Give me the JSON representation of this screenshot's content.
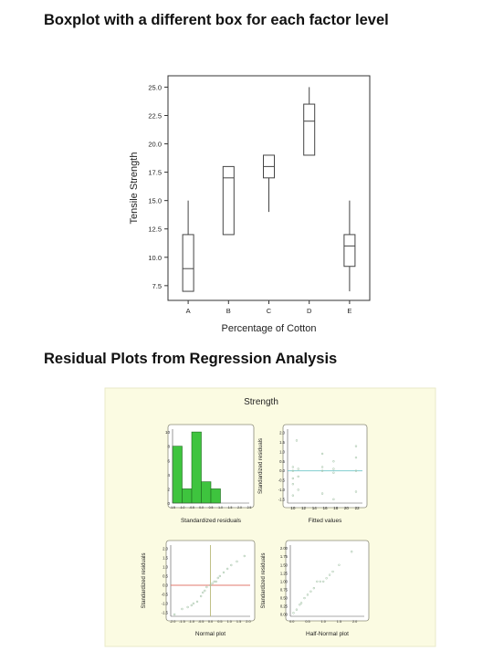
{
  "headings": {
    "boxplot": "Boxplot with a different box for each factor level",
    "residual": "Residual Plots from Regression Analysis"
  },
  "chart_data": [
    {
      "type": "boxplot",
      "xlabel": "Percentage of Cotton",
      "ylabel": "Tensile Strength",
      "categories": [
        "A",
        "B",
        "C",
        "D",
        "E"
      ],
      "yticks": [
        7.5,
        10.0,
        12.5,
        15.0,
        17.5,
        20.0,
        22.5,
        25.0
      ],
      "ylim": [
        6.2,
        26.0
      ],
      "boxes": [
        {
          "label": "A",
          "min": 7,
          "q1": 7,
          "median": 9,
          "q3": 12,
          "max": 15
        },
        {
          "label": "B",
          "min": 12,
          "q1": 12,
          "median": 17,
          "q3": 18,
          "max": 18
        },
        {
          "label": "C",
          "min": 14,
          "q1": 17,
          "median": 18,
          "q3": 19,
          "max": 19
        },
        {
          "label": "D",
          "min": 19,
          "q1": 19,
          "median": 22,
          "q3": 23.5,
          "max": 25
        },
        {
          "label": "E",
          "min": 7,
          "q1": 9.2,
          "median": 11,
          "q3": 12,
          "max": 15
        }
      ],
      "grid": false
    },
    {
      "type": "panel",
      "title": "Strength",
      "background": "#fbfbe2",
      "plots": [
        {
          "type": "bar",
          "xlabel": "Standardized residuals",
          "bar_color": "#3ec43e",
          "xticks": [
            "-1.5",
            "-1.0",
            "-0.5",
            "0.0",
            "0.5",
            "1.0",
            "1.5",
            "2.0",
            "2.5"
          ],
          "yticks": [
            0,
            2,
            4,
            6,
            8,
            10
          ],
          "ylim": [
            0,
            10.4
          ],
          "bins": [
            {
              "from": -1.5,
              "to": -1.0,
              "value": 8
            },
            {
              "from": -1.0,
              "to": -0.5,
              "value": 2
            },
            {
              "from": -0.5,
              "to": 0.0,
              "value": 10
            },
            {
              "from": 0.0,
              "to": 0.5,
              "value": 3
            },
            {
              "from": 0.5,
              "to": 1.0,
              "value": 2
            }
          ]
        },
        {
          "type": "scatter",
          "xlabel": "Fitted values",
          "ylabel": "Standardized residuals",
          "xticks": [
            10,
            12,
            14,
            16,
            18,
            20,
            22
          ],
          "yticks": [
            "-1.5",
            "-1.0",
            "-0.5",
            "0.0",
            "0.5",
            "1.0",
            "1.5",
            "2.0"
          ],
          "xlim": [
            9,
            23
          ],
          "ylim": [
            -1.7,
            2.2
          ],
          "reference_line": 0.0,
          "points": [
            [
              10,
              -0.7
            ],
            [
              10,
              -0.4
            ],
            [
              10,
              0.0
            ],
            [
              10,
              0.2
            ],
            [
              10,
              -1.3
            ],
            [
              10.7,
              1.6
            ],
            [
              11,
              -0.3
            ],
            [
              11,
              0.1
            ],
            [
              11,
              -1.0
            ],
            [
              15.5,
              0.9
            ],
            [
              15.5,
              0.2
            ],
            [
              15.5,
              -1.2
            ],
            [
              15.5,
              0.0
            ],
            [
              17.6,
              0.5
            ],
            [
              17.6,
              -0.1
            ],
            [
              17.6,
              0.1
            ],
            [
              17.6,
              -1.5
            ],
            [
              21.8,
              1.3
            ],
            [
              21.8,
              0.7
            ],
            [
              21.8,
              -1.1
            ],
            [
              21.8,
              0.0
            ]
          ]
        },
        {
          "type": "scatter",
          "xlabel": "Normal plot",
          "ylabel": "Standardized residuals",
          "xticks": [
            "-2.0",
            "-1.5",
            "-1.0",
            "-0.5",
            "0.0",
            "0.5",
            "1.0",
            "1.5",
            "2.0"
          ],
          "yticks": [
            "-1.5",
            "-1.0",
            "-0.5",
            "0.0",
            "0.5",
            "1.0",
            "1.5",
            "2.0"
          ],
          "xlim": [
            -2.1,
            2.1
          ],
          "ylim": [
            -1.7,
            2.2
          ],
          "reference_line": 0.0,
          "points": [
            [
              -1.9,
              -1.6
            ],
            [
              -1.5,
              -1.3
            ],
            [
              -1.2,
              -1.2
            ],
            [
              -1.0,
              -1.1
            ],
            [
              -0.9,
              -1.0
            ],
            [
              -0.7,
              -0.9
            ],
            [
              -0.5,
              -0.6
            ],
            [
              -0.4,
              -0.4
            ],
            [
              -0.3,
              -0.3
            ],
            [
              -0.2,
              -0.1
            ],
            [
              0.0,
              0.0
            ],
            [
              0.1,
              0.1
            ],
            [
              0.2,
              0.2
            ],
            [
              0.3,
              0.2
            ],
            [
              0.4,
              0.4
            ],
            [
              0.5,
              0.5
            ],
            [
              0.7,
              0.7
            ],
            [
              0.9,
              0.9
            ],
            [
              1.1,
              1.1
            ],
            [
              1.4,
              1.3
            ],
            [
              1.8,
              1.6
            ]
          ]
        },
        {
          "type": "scatter",
          "xlabel": "Half-Normal plot",
          "ylabel": "Standardized residuals",
          "xticks": [
            "0.0",
            "0.5",
            "1.0",
            "1.5",
            "2.0"
          ],
          "yticks": [
            "0.00",
            "0.25",
            "0.50",
            "0.75",
            "1.00",
            "1.25",
            "1.50",
            "1.75",
            "2.00"
          ],
          "xlim": [
            -0.05,
            2.3
          ],
          "ylim": [
            -0.05,
            2.1
          ],
          "points": [
            [
              0.05,
              0.05
            ],
            [
              0.15,
              0.15
            ],
            [
              0.25,
              0.3
            ],
            [
              0.3,
              0.35
            ],
            [
              0.4,
              0.5
            ],
            [
              0.5,
              0.6
            ],
            [
              0.6,
              0.7
            ],
            [
              0.7,
              0.8
            ],
            [
              0.8,
              1.0
            ],
            [
              0.9,
              1.0
            ],
            [
              1.0,
              1.0
            ],
            [
              1.1,
              1.1
            ],
            [
              1.2,
              1.2
            ],
            [
              1.3,
              1.3
            ],
            [
              1.5,
              1.5
            ],
            [
              1.9,
              1.9
            ]
          ]
        }
      ]
    }
  ]
}
